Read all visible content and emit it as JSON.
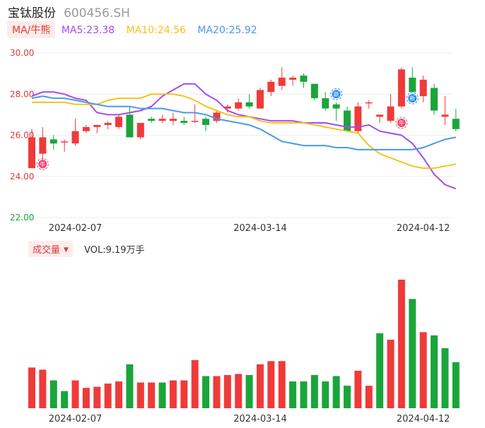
{
  "header": {
    "name": "宝钛股份",
    "code": "600456.SH"
  },
  "legend": {
    "ma_button": "MA/牛熊",
    "ma5": "MA5:23.38",
    "ma10": "MA10:24.56",
    "ma20": "MA20:25.92"
  },
  "volume_header": {
    "button": "成交量",
    "caret": "▼",
    "value": "VOL:9.19万手"
  },
  "colors": {
    "up": "#f03a3a",
    "down": "#1aa53a",
    "ma5": "#a64af0",
    "ma10": "#f5c21d",
    "ma20": "#4a9ae8",
    "axis_label": "#e03a3a",
    "axis_label_low": "#1aa53a",
    "grid": "#eeeeee",
    "badge_bull": "#f0486e",
    "badge_new": "#2a8ee8"
  },
  "badges": {
    "bull": "牛",
    "new": "新"
  },
  "chart_data": [
    {
      "type": "candlestick",
      "ylim": [
        22.0,
        30.0
      ],
      "yticks": [
        "30.00",
        "28.00",
        "26.00",
        "24.00",
        "22.00"
      ],
      "xtick_labels": [
        "2024-02-07",
        "2024-03-14",
        "2024-04-12"
      ],
      "candles": [
        {
          "o": 24.4,
          "c": 25.9,
          "h": 26.3,
          "l": 24.4
        },
        {
          "o": 25.1,
          "c": 25.9,
          "h": 26.4,
          "l": 24.7
        },
        {
          "o": 25.8,
          "c": 25.6,
          "h": 26.0,
          "l": 25.3
        },
        {
          "o": 25.7,
          "c": 25.7,
          "h": 25.8,
          "l": 25.2
        },
        {
          "o": 25.6,
          "c": 26.2,
          "h": 26.8,
          "l": 25.5
        },
        {
          "o": 26.2,
          "c": 26.4,
          "h": 26.5,
          "l": 26.1
        },
        {
          "o": 26.4,
          "c": 26.5,
          "h": 26.5,
          "l": 26.1
        },
        {
          "o": 26.5,
          "c": 26.6,
          "h": 26.7,
          "l": 26.3
        },
        {
          "o": 26.4,
          "c": 26.9,
          "h": 27.0,
          "l": 26.3
        },
        {
          "o": 27.0,
          "c": 25.9,
          "h": 27.4,
          "l": 25.9
        },
        {
          "o": 25.9,
          "c": 26.6,
          "h": 26.6,
          "l": 25.8
        },
        {
          "o": 26.8,
          "c": 26.7,
          "h": 26.9,
          "l": 26.6
        },
        {
          "o": 26.7,
          "c": 26.8,
          "h": 27.0,
          "l": 26.6
        },
        {
          "o": 26.7,
          "c": 26.8,
          "h": 27.1,
          "l": 26.5
        },
        {
          "o": 26.7,
          "c": 26.6,
          "h": 26.9,
          "l": 26.5
        },
        {
          "o": 26.7,
          "c": 26.7,
          "h": 27.5,
          "l": 26.6
        },
        {
          "o": 26.8,
          "c": 26.5,
          "h": 26.9,
          "l": 26.2
        },
        {
          "o": 26.7,
          "c": 27.1,
          "h": 27.2,
          "l": 26.6
        },
        {
          "o": 27.3,
          "c": 27.4,
          "h": 27.5,
          "l": 27.1
        },
        {
          "o": 27.3,
          "c": 27.6,
          "h": 27.8,
          "l": 27.2
        },
        {
          "o": 27.6,
          "c": 27.4,
          "h": 28.0,
          "l": 27.3
        },
        {
          "o": 27.3,
          "c": 28.2,
          "h": 28.3,
          "l": 27.3
        },
        {
          "o": 28.1,
          "c": 28.6,
          "h": 28.7,
          "l": 27.9
        },
        {
          "o": 28.4,
          "c": 28.8,
          "h": 29.3,
          "l": 28.2
        },
        {
          "o": 28.7,
          "c": 28.8,
          "h": 28.9,
          "l": 28.4
        },
        {
          "o": 28.9,
          "c": 28.6,
          "h": 29.0,
          "l": 28.3
        },
        {
          "o": 28.5,
          "c": 27.8,
          "h": 28.5,
          "l": 27.7
        },
        {
          "o": 27.8,
          "c": 27.3,
          "h": 28.1,
          "l": 27.2
        },
        {
          "o": 27.5,
          "c": 27.3,
          "h": 27.6,
          "l": 26.7
        },
        {
          "o": 27.2,
          "c": 26.2,
          "h": 27.4,
          "l": 26.2
        },
        {
          "o": 26.2,
          "c": 27.4,
          "h": 27.6,
          "l": 26.1
        },
        {
          "o": 27.6,
          "c": 27.6,
          "h": 27.7,
          "l": 27.3
        },
        {
          "o": 26.9,
          "c": 27.0,
          "h": 27.0,
          "l": 26.6
        },
        {
          "o": 26.7,
          "c": 27.4,
          "h": 28.0,
          "l": 26.6
        },
        {
          "o": 27.4,
          "c": 29.2,
          "h": 29.3,
          "l": 27.3
        },
        {
          "o": 28.8,
          "c": 28.1,
          "h": 29.3,
          "l": 28.1
        },
        {
          "o": 27.9,
          "c": 28.7,
          "h": 28.9,
          "l": 27.6
        },
        {
          "o": 28.3,
          "c": 27.2,
          "h": 28.5,
          "l": 27.0
        },
        {
          "o": 26.9,
          "c": 27.0,
          "h": 27.9,
          "l": 26.5
        },
        {
          "o": 26.8,
          "c": 26.3,
          "h": 27.3,
          "l": 26.2
        }
      ],
      "ma5": [
        27.9,
        28.1,
        28.1,
        28.0,
        27.8,
        27.7,
        27.1,
        27.0,
        27.0,
        27.1,
        27.2,
        27.4,
        27.9,
        28.2,
        28.5,
        28.5,
        28.0,
        27.7,
        27.2,
        27.0,
        26.9,
        26.8,
        26.7,
        26.7,
        26.7,
        26.6,
        26.6,
        26.6,
        26.5,
        26.4,
        26.4,
        26.5,
        26.2,
        26.1,
        26.0,
        25.6,
        24.9,
        24.1,
        23.6,
        23.4
      ],
      "ma10": [
        27.6,
        27.6,
        27.6,
        27.6,
        27.5,
        27.5,
        27.5,
        27.7,
        27.8,
        27.8,
        27.8,
        28.0,
        28.0,
        28.0,
        27.9,
        27.7,
        27.4,
        27.2,
        27.0,
        26.9,
        26.9,
        26.7,
        26.6,
        26.6,
        26.6,
        26.6,
        26.5,
        26.4,
        26.3,
        26.2,
        26.1,
        25.5,
        25.1,
        24.9,
        24.7,
        24.5,
        24.4,
        24.4,
        24.5,
        24.6
      ],
      "ma20": [
        27.8,
        27.9,
        27.8,
        27.8,
        27.7,
        27.6,
        27.5,
        27.4,
        27.4,
        27.4,
        27.3,
        27.3,
        27.3,
        27.2,
        27.1,
        27.1,
        27.0,
        26.8,
        26.7,
        26.6,
        26.5,
        26.3,
        26.0,
        25.7,
        25.6,
        25.5,
        25.5,
        25.5,
        25.4,
        25.4,
        25.3,
        25.3,
        25.3,
        25.3,
        25.3,
        25.3,
        25.4,
        25.6,
        25.8,
        25.9
      ],
      "markers": [
        {
          "index": 1,
          "kind": "bull",
          "price": 24.6
        },
        {
          "index": 28,
          "kind": "new",
          "price": 28.0
        },
        {
          "index": 34,
          "kind": "bull",
          "price": 26.6
        },
        {
          "index": 35,
          "kind": "new",
          "price": 27.8
        }
      ]
    },
    {
      "type": "bar",
      "title": "VOL:9.19万手",
      "xtick_labels": [
        "2024-02-07",
        "2024-03-14",
        "2024-04-12"
      ],
      "values": [
        3.8,
        3.6,
        2.6,
        1.6,
        2.6,
        1.9,
        2.0,
        2.3,
        2.5,
        4.1,
        2.4,
        2.4,
        2.4,
        2.6,
        2.6,
        4.5,
        3.0,
        3.0,
        3.1,
        3.2,
        3.1,
        4.1,
        4.4,
        4.4,
        2.5,
        2.5,
        3.1,
        2.5,
        3.0,
        2.1,
        3.5,
        2.1,
        7.0,
        6.4,
        12.0,
        10.2,
        7.1,
        6.8,
        5.6,
        4.3
      ],
      "up": [
        1,
        1,
        0,
        0,
        1,
        1,
        1,
        1,
        1,
        0,
        1,
        1,
        0,
        1,
        1,
        1,
        0,
        1,
        1,
        1,
        0,
        1,
        1,
        1,
        0,
        0,
        0,
        0,
        0,
        0,
        1,
        1,
        0,
        1,
        1,
        0,
        1,
        0,
        0,
        0
      ]
    }
  ]
}
